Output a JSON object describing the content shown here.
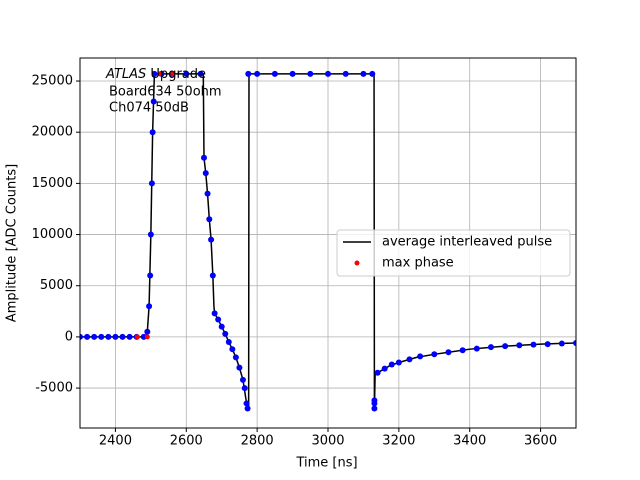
{
  "chart_data": {
    "type": "line",
    "xlabel": "Time [ns]",
    "ylabel": "Amplitude [ADC Counts]",
    "annotation": [
      "ATLAS",
      "Upgrade",
      "Board634 50ohm",
      "Ch074 50dB"
    ],
    "xlim": [
      2300,
      3700
    ],
    "ylim": [
      -8900,
      27250
    ],
    "xticks": [
      2400,
      2600,
      2800,
      3000,
      3200,
      3400,
      3600
    ],
    "yticks": [
      -5000,
      0,
      5000,
      10000,
      15000,
      20000,
      25000
    ],
    "grid": true,
    "legend": "center right",
    "series": [
      {
        "name": "average interleaved pulse",
        "color": "#000000",
        "kind": "line",
        "x": [
          2300,
          2350,
          2400,
          2450,
          2485,
          2490,
          2495,
          2500,
          2505,
          2510,
          2550,
          2600,
          2648,
          2650,
          2655,
          2660,
          2665,
          2670,
          2675,
          2678,
          2680,
          2690,
          2700,
          2710,
          2720,
          2730,
          2740,
          2750,
          2760,
          2768,
          2773,
          2776,
          2777,
          2800,
          2900,
          3000,
          3100,
          3130,
          3131,
          3133,
          3150,
          3175,
          3200,
          3250,
          3300,
          3350,
          3400,
          3450,
          3500,
          3550,
          3600,
          3650,
          3700
        ],
        "values": [
          0,
          0,
          0,
          0,
          0,
          500,
          3000,
          10000,
          20000,
          25700,
          25700,
          25700,
          25700,
          17500,
          16000,
          14000,
          11500,
          9500,
          6000,
          3000,
          2300,
          1700,
          1000,
          300,
          -500,
          -1200,
          -2000,
          -3000,
          -4200,
          -6000,
          -7000,
          -7000,
          25700,
          25700,
          25700,
          25700,
          25700,
          25700,
          -7000,
          -3700,
          -3300,
          -2800,
          -2500,
          -2000,
          -1700,
          -1450,
          -1200,
          -1050,
          -900,
          -800,
          -700,
          -650,
          -600
        ]
      },
      {
        "name": "max phase",
        "color": "#ff0000",
        "kind": "scatter",
        "x": [
          2462,
          2490,
          2525,
          2562
        ],
        "values": [
          0,
          0,
          25700,
          25700
        ]
      }
    ],
    "samples": {
      "color": "#0000ff",
      "x": [
        2300,
        2320,
        2340,
        2360,
        2380,
        2400,
        2420,
        2440,
        2460,
        2480,
        2490,
        2495,
        2498,
        2500,
        2503,
        2505,
        2508,
        2510,
        2530,
        2560,
        2600,
        2640,
        2650,
        2655,
        2660,
        2665,
        2670,
        2675,
        2680,
        2690,
        2700,
        2710,
        2720,
        2730,
        2740,
        2750,
        2760,
        2765,
        2770,
        2773,
        2775,
        2800,
        2850,
        2900,
        2950,
        3000,
        3050,
        3100,
        3125,
        3131,
        3131,
        3131,
        3140,
        3160,
        3180,
        3200,
        3230,
        3260,
        3300,
        3340,
        3380,
        3420,
        3460,
        3500,
        3540,
        3580,
        3620,
        3660,
        3700
      ],
      "values": [
        0,
        0,
        0,
        0,
        0,
        0,
        0,
        0,
        0,
        0,
        500,
        3000,
        6000,
        10000,
        15000,
        20000,
        23000,
        25700,
        25700,
        25700,
        25700,
        25700,
        17500,
        16000,
        14000,
        11500,
        9500,
        6000,
        2300,
        1700,
        1000,
        300,
        -500,
        -1200,
        -2000,
        -3000,
        -4200,
        -5000,
        -6500,
        -7000,
        25700,
        25700,
        25700,
        25700,
        25700,
        25700,
        25700,
        25700,
        25700,
        -7000,
        -6500,
        -6200,
        -3500,
        -3100,
        -2700,
        -2500,
        -2200,
        -1900,
        -1700,
        -1500,
        -1300,
        -1150,
        -1000,
        -900,
        -820,
        -750,
        -700,
        -650,
        -600
      ]
    }
  }
}
